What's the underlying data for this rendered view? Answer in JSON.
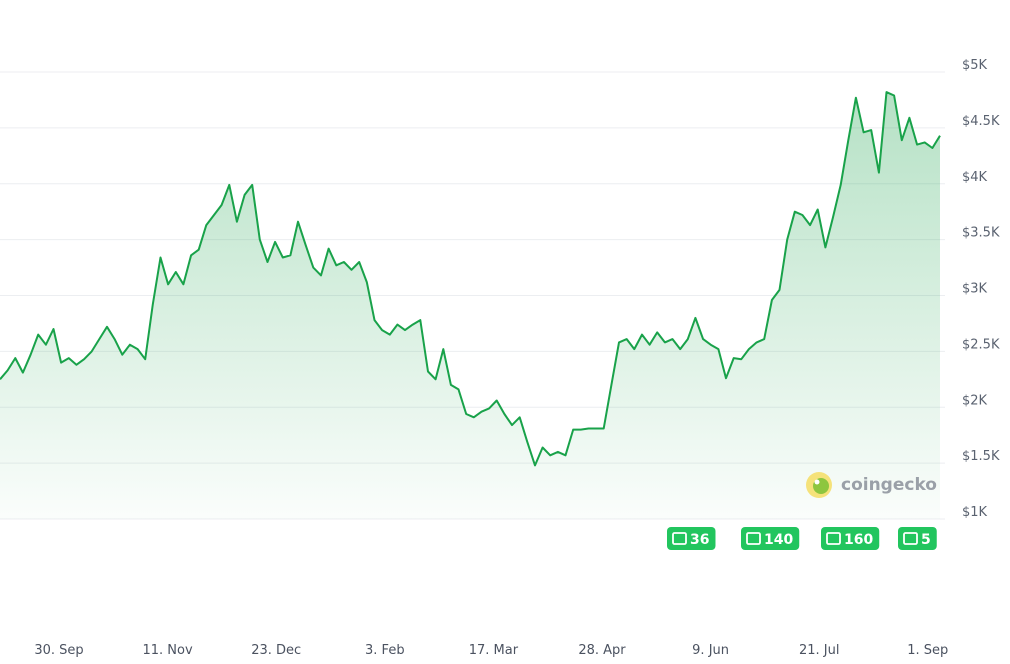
{
  "chart_data": {
    "type": "line",
    "x_labels": [
      "30. Sep",
      "11. Nov",
      "23. Dec",
      "3. Feb",
      "17. Mar",
      "28. Apr",
      "9. Jun",
      "21. Jul",
      "1. Sep"
    ],
    "values": [
      2250,
      2330,
      2440,
      2310,
      2470,
      2650,
      2560,
      2700,
      2400,
      2440,
      2380,
      2430,
      2500,
      2610,
      2720,
      2610,
      2470,
      2560,
      2520,
      2430,
      2920,
      3340,
      3100,
      3210,
      3100,
      3360,
      3410,
      3630,
      3720,
      3810,
      3990,
      3660,
      3900,
      3990,
      3500,
      3300,
      3480,
      3340,
      3360,
      3660,
      3450,
      3250,
      3180,
      3420,
      3270,
      3300,
      3230,
      3300,
      3120,
      2780,
      2690,
      2650,
      2740,
      2690,
      2740,
      2780,
      2320,
      2250,
      2520,
      2200,
      2160,
      1940,
      1910,
      1960,
      1990,
      2060,
      1940,
      1840,
      1910,
      1690,
      1480,
      1640,
      1570,
      1600,
      1570,
      1800,
      1800,
      1810,
      1810,
      1810,
      2200,
      2580,
      2610,
      2520,
      2650,
      2560,
      2670,
      2580,
      2610,
      2520,
      2610,
      2800,
      2610,
      2560,
      2520,
      2260,
      2440,
      2430,
      2520,
      2580,
      2610,
      2960,
      3050,
      3500,
      3750,
      3720,
      3630,
      3770,
      3430,
      3700,
      3990,
      4390,
      4770,
      4460,
      4480,
      4100,
      4820,
      4790,
      4390,
      4590,
      4350,
      4370,
      4320,
      4430
    ],
    "color": "#19a24a",
    "ylim": [
      1000,
      5000
    ],
    "yticks": [
      {
        "value": 1000,
        "label": "$1K"
      },
      {
        "value": 1500,
        "label": "$1.5K"
      },
      {
        "value": 2000,
        "label": "$2K"
      },
      {
        "value": 2500,
        "label": "$2.5K"
      },
      {
        "value": 3000,
        "label": "$3K"
      },
      {
        "value": 3500,
        "label": "$3.5K"
      },
      {
        "value": 4000,
        "label": "$4K"
      },
      {
        "value": 4500,
        "label": "$4.5K"
      },
      {
        "value": 5000,
        "label": "$5K"
      }
    ],
    "grid": true,
    "watermark": "coingecko",
    "news_counts": [
      36,
      140,
      160,
      5
    ]
  }
}
